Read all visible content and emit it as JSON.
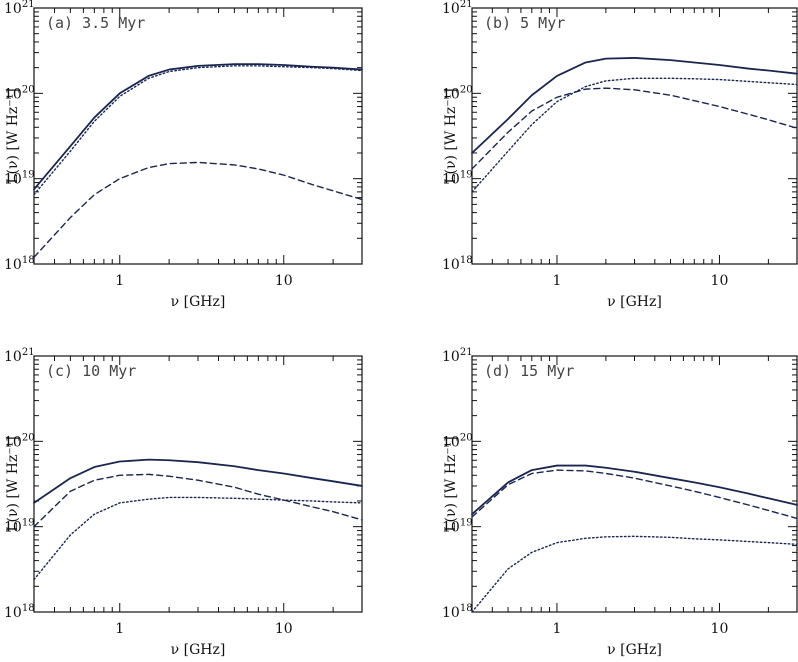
{
  "chart_data": [
    {
      "type": "line",
      "panel_label": "(a) 3.5 Myr",
      "xlabel": "ν [GHz]",
      "ylabel": "L(ν) [W Hz⁻¹]",
      "xscale": "log",
      "yscale": "log",
      "xlim": [
        0.3,
        30
      ],
      "ylim": [
        1e+18,
        1e+21
      ],
      "xticks": [
        "1",
        "10"
      ],
      "yticks": [
        "10¹⁸",
        "10¹⁹",
        "10²⁰",
        "10²¹"
      ],
      "x": [
        0.3,
        0.5,
        0.7,
        1,
        1.5,
        2,
        3,
        5,
        7,
        10,
        15,
        20,
        30
      ],
      "series": [
        {
          "style": "solid",
          "values": [
            7.5e+18,
            2.4e+19,
            5.2e+19,
            1e+20,
            1.6e+20,
            1.9e+20,
            2.1e+20,
            2.2e+20,
            2.2e+20,
            2.15e+20,
            2.05e+20,
            2e+20,
            1.9e+20
          ]
        },
        {
          "style": "dotted",
          "values": [
            6.5e+18,
            2.1e+19,
            4.7e+19,
            9.2e+19,
            1.5e+20,
            1.8e+20,
            2e+20,
            2.1e+20,
            2.1e+20,
            2.05e+20,
            2e+20,
            1.95e+20,
            1.85e+20
          ]
        },
        {
          "style": "dashed",
          "values": [
            1.2e+18,
            3.5e+18,
            6.5e+18,
            1e+19,
            1.35e+19,
            1.5e+19,
            1.55e+19,
            1.45e+19,
            1.3e+19,
            1.1e+19,
            8.5e+18,
            7.2e+18,
            5.7e+18
          ]
        }
      ]
    },
    {
      "type": "line",
      "panel_label": "(b) 5 Myr",
      "xlabel": "ν [GHz]",
      "ylabel": "L(ν) [W Hz⁻¹]",
      "xscale": "log",
      "yscale": "log",
      "xlim": [
        0.3,
        30
      ],
      "ylim": [
        1e+18,
        1e+21
      ],
      "xticks": [
        "1",
        "10"
      ],
      "yticks": [
        "10¹⁸",
        "10¹⁹",
        "10²⁰",
        "10²¹"
      ],
      "x": [
        0.3,
        0.5,
        0.7,
        1,
        1.5,
        2,
        3,
        5,
        7,
        10,
        15,
        20,
        30
      ],
      "series": [
        {
          "style": "solid",
          "values": [
            2e+19,
            5e+19,
            9.5e+19,
            1.6e+20,
            2.3e+20,
            2.55e+20,
            2.6e+20,
            2.45e+20,
            2.3e+20,
            2.15e+20,
            1.95e+20,
            1.85e+20,
            1.7e+20
          ]
        },
        {
          "style": "dashed",
          "values": [
            1.3e+19,
            3.5e+19,
            6.2e+19,
            9e+19,
            1.12e+20,
            1.15e+20,
            1.1e+20,
            9.5e+19,
            8.2e+19,
            7e+19,
            5.7e+19,
            4.9e+19,
            3.9e+19
          ]
        },
        {
          "style": "dotted",
          "values": [
            7e+18,
            2.1e+19,
            4.3e+19,
            8e+19,
            1.2e+20,
            1.4e+20,
            1.5e+20,
            1.5e+20,
            1.48e+20,
            1.45e+20,
            1.38e+20,
            1.33e+20,
            1.27e+20
          ]
        }
      ]
    },
    {
      "type": "line",
      "panel_label": "(c) 10 Myr",
      "xlabel": "ν [GHz]",
      "ylabel": "L(ν) [W Hz⁻¹]",
      "xscale": "log",
      "yscale": "log",
      "xlim": [
        0.3,
        30
      ],
      "ylim": [
        1e+18,
        1e+21
      ],
      "xticks": [
        "1",
        "10"
      ],
      "yticks": [
        "10¹⁸",
        "10¹⁹",
        "10²⁰",
        "10²¹"
      ],
      "x": [
        0.3,
        0.5,
        0.7,
        1,
        1.5,
        2,
        3,
        5,
        7,
        10,
        15,
        20,
        30
      ],
      "series": [
        {
          "style": "solid",
          "values": [
            1.9e+19,
            3.7e+19,
            5e+19,
            5.8e+19,
            6.1e+19,
            6e+19,
            5.7e+19,
            5.1e+19,
            4.6e+19,
            4.2e+19,
            3.7e+19,
            3.4e+19,
            3e+19
          ]
        },
        {
          "style": "dashed",
          "values": [
            1e+19,
            2.6e+19,
            3.5e+19,
            4e+19,
            4.1e+19,
            3.9e+19,
            3.5e+19,
            2.9e+19,
            2.4e+19,
            2.05e+19,
            1.7e+19,
            1.5e+19,
            1.2e+19
          ]
        },
        {
          "style": "dotted",
          "values": [
            2.4e+18,
            8e+18,
            1.4e+19,
            1.9e+19,
            2.1e+19,
            2.2e+19,
            2.2e+19,
            2.15e+19,
            2.1e+19,
            2.05e+19,
            2e+19,
            1.95e+19,
            1.9e+19
          ]
        }
      ]
    },
    {
      "type": "line",
      "panel_label": "(d) 15 Myr",
      "xlabel": "ν [GHz]",
      "ylabel": "L(ν) [W Hz⁻¹]",
      "xscale": "log",
      "yscale": "log",
      "xlim": [
        0.3,
        30
      ],
      "ylim": [
        1e+18,
        1e+21
      ],
      "xticks": [
        "1",
        "10"
      ],
      "yticks": [
        "10¹⁸",
        "10¹⁹",
        "10²⁰",
        "10²¹"
      ],
      "x": [
        0.3,
        0.5,
        0.7,
        1,
        1.5,
        2,
        3,
        5,
        7,
        10,
        15,
        20,
        30
      ],
      "series": [
        {
          "style": "solid",
          "values": [
            1.4e+19,
            3.3e+19,
            4.6e+19,
            5.2e+19,
            5.2e+19,
            4.9e+19,
            4.4e+19,
            3.7e+19,
            3.3e+19,
            2.9e+19,
            2.45e+19,
            2.15e+19,
            1.8e+19
          ]
        },
        {
          "style": "dashed",
          "values": [
            1.3e+19,
            3.1e+19,
            4.2e+19,
            4.6e+19,
            4.5e+19,
            4.2e+19,
            3.7e+19,
            3e+19,
            2.6e+19,
            2.2e+19,
            1.8e+19,
            1.55e+19,
            1.25e+19
          ]
        },
        {
          "style": "dotted",
          "values": [
            1e+18,
            3.2e+18,
            5e+18,
            6.5e+18,
            7.3e+18,
            7.6e+18,
            7.7e+18,
            7.5e+18,
            7.2e+18,
            7e+18,
            6.7e+18,
            6.5e+18,
            6.2e+18
          ]
        }
      ]
    }
  ],
  "colors": {
    "curve": "#1a2650",
    "axis": "#111111",
    "panel_label": "#444444"
  }
}
